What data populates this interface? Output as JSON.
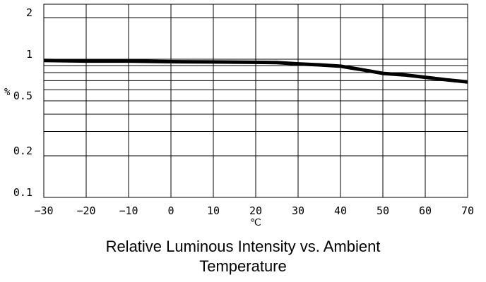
{
  "chart_data": {
    "type": "line",
    "title": "Relative Luminous Intensity vs. Ambient Temperature",
    "title_lines": [
      "Relative Luminous Intensity vs. Ambient",
      "Temperature"
    ],
    "xlabel": "℃",
    "ylabel": "%",
    "xlim": [
      -30,
      70
    ],
    "ylim": [
      0.1,
      2.5
    ],
    "yscale": "log",
    "grid": true,
    "x_ticks": [
      -30,
      -20,
      -10,
      0,
      10,
      20,
      30,
      40,
      50,
      60,
      70
    ],
    "x_tick_labels": [
      "−30",
      "−20",
      "−10",
      "0",
      "10",
      "20",
      "30",
      "40",
      "50",
      "60",
      "70"
    ],
    "y_ticks": [
      0.1,
      0.2,
      0.5,
      1,
      2
    ],
    "y_tick_labels": [
      "0.1",
      "0.2",
      "0.5",
      "1",
      "2"
    ],
    "y_gridlines": [
      0.1,
      0.2,
      0.3,
      0.4,
      0.5,
      0.6,
      0.7,
      0.8,
      0.9,
      1,
      2
    ],
    "series": [
      {
        "x": [
          -30,
          -20,
          -10,
          0,
          10,
          20,
          25,
          30,
          35,
          40,
          45,
          50,
          55,
          60,
          65,
          70
        ],
        "values": [
          0.98,
          0.97,
          0.97,
          0.96,
          0.955,
          0.95,
          0.945,
          0.925,
          0.91,
          0.89,
          0.84,
          0.79,
          0.77,
          0.74,
          0.71,
          0.685
        ]
      }
    ]
  }
}
